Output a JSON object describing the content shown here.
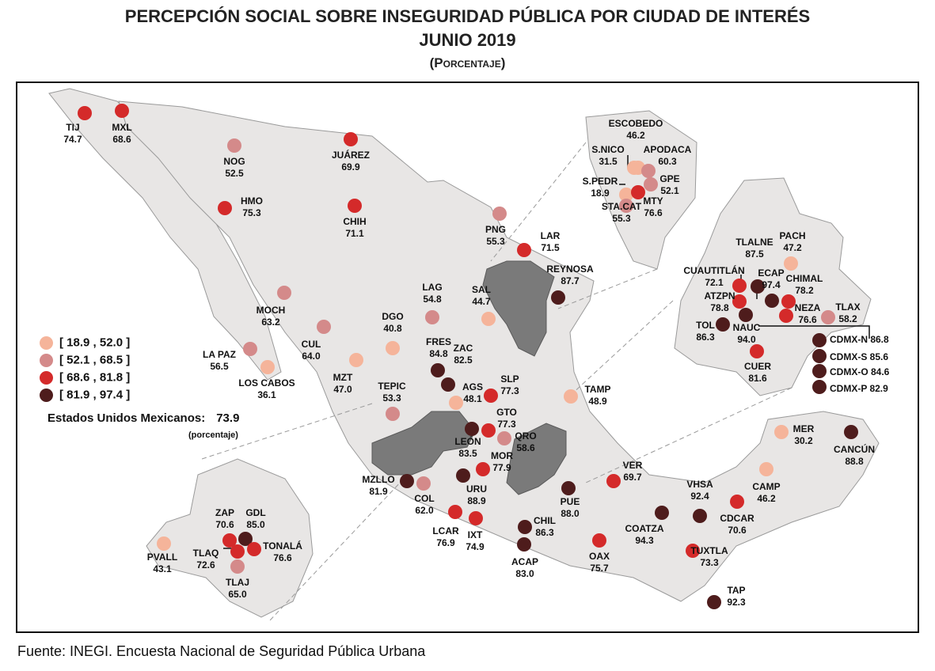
{
  "header": {
    "title": "PERCEPCIÓN SOCIAL SOBRE INSEGURIDAD PÚBLICA POR CIUDAD DE INTERÉS",
    "date": "JUNIO 2019",
    "unit": "(Porcentaje)"
  },
  "legend": [
    {
      "label": "[ 18.9 , 52.0 ]",
      "color": "#f5b49a"
    },
    {
      "label": "[ 52.1 , 68.5 ]",
      "color": "#d48a8a"
    },
    {
      "label": "[ 68.6 , 81.8 ]",
      "color": "#d42a2a"
    },
    {
      "label": "[ 81.9 , 97.4 ]",
      "color": "#4e1c1c"
    }
  ],
  "national": {
    "label": "Estados Unidos Mexicanos:",
    "value": "73.9",
    "unit": "(porcentaje)"
  },
  "source": "Fuente: INEGI. Encuesta Nacional de Seguridad Pública Urbana",
  "cities": [
    {
      "name": "TIJ",
      "value": "74.7"
    },
    {
      "name": "MXL",
      "value": "68.6"
    },
    {
      "name": "NOG",
      "value": "52.5"
    },
    {
      "name": "JUÁREZ",
      "value": "69.9"
    },
    {
      "name": "HMO",
      "value": "75.3"
    },
    {
      "name": "CHIH",
      "value": "71.1"
    },
    {
      "name": "PNG",
      "value": "55.3"
    },
    {
      "name": "LAR",
      "value": "71.5"
    },
    {
      "name": "REYNOSA",
      "value": "87.7"
    },
    {
      "name": "LAG",
      "value": "54.8"
    },
    {
      "name": "SAL",
      "value": "44.7"
    },
    {
      "name": "MOCH",
      "value": "63.2"
    },
    {
      "name": "DGO",
      "value": "40.8"
    },
    {
      "name": "LA PAZ",
      "value": "56.5"
    },
    {
      "name": "CUL",
      "value": "64.0"
    },
    {
      "name": "LOS CABOS",
      "value": "36.1"
    },
    {
      "name": "MZT",
      "value": "47.0"
    },
    {
      "name": "FRES",
      "value": "84.8"
    },
    {
      "name": "ZAC",
      "value": "82.5"
    },
    {
      "name": "SLP",
      "value": "77.3"
    },
    {
      "name": "TAMP",
      "value": "48.9"
    },
    {
      "name": "TEPIC",
      "value": "53.3"
    },
    {
      "name": "AGS",
      "value": "48.1"
    },
    {
      "name": "GTO",
      "value": "77.3"
    },
    {
      "name": "LEÓN",
      "value": "83.5"
    },
    {
      "name": "QRO",
      "value": "58.6"
    },
    {
      "name": "MOR",
      "value": "77.9"
    },
    {
      "name": "MZLLO",
      "value": "81.9"
    },
    {
      "name": "COL",
      "value": "62.0"
    },
    {
      "name": "URU",
      "value": "88.9"
    },
    {
      "name": "PUE",
      "value": "88.0"
    },
    {
      "name": "VER",
      "value": "69.7"
    },
    {
      "name": "LCAR",
      "value": "76.9"
    },
    {
      "name": "IXT",
      "value": "74.9"
    },
    {
      "name": "CHIL",
      "value": "86.3"
    },
    {
      "name": "ACAP",
      "value": "83.0"
    },
    {
      "name": "OAX",
      "value": "75.7"
    },
    {
      "name": "COATZA",
      "value": "94.3"
    },
    {
      "name": "VHSA",
      "value": "92.4"
    },
    {
      "name": "TUXTLA",
      "value": "73.3"
    },
    {
      "name": "TAP",
      "value": "92.3"
    },
    {
      "name": "CDCAR",
      "value": "70.6"
    },
    {
      "name": "CAMP",
      "value": "46.2"
    },
    {
      "name": "MER",
      "value": "30.2"
    },
    {
      "name": "CANCÚN",
      "value": "88.8"
    },
    {
      "name": "ESCOBEDO",
      "value": "46.2"
    },
    {
      "name": "S.NICO",
      "value": "31.5"
    },
    {
      "name": "APODACA",
      "value": "60.3"
    },
    {
      "name": "S.PEDR",
      "value": "18.9"
    },
    {
      "name": "GPE",
      "value": "52.1"
    },
    {
      "name": "STA.CAT",
      "value": "55.3"
    },
    {
      "name": "MTY",
      "value": "76.6"
    },
    {
      "name": "TLALNE",
      "value": "87.5"
    },
    {
      "name": "PACH",
      "value": "47.2"
    },
    {
      "name": "CUAUTITLÁN",
      "value": "72.1"
    },
    {
      "name": "ECAP",
      "value": "97.4"
    },
    {
      "name": "ATZPN",
      "value": "78.8"
    },
    {
      "name": "CHIMAL",
      "value": "78.2"
    },
    {
      "name": "NEZA",
      "value": "76.6"
    },
    {
      "name": "TLAX",
      "value": "58.2"
    },
    {
      "name": "TOL",
      "value": "86.3"
    },
    {
      "name": "NAUC",
      "value": "94.0"
    },
    {
      "name": "CUER",
      "value": "81.6"
    },
    {
      "name": "CDMX-N",
      "value": "86.8"
    },
    {
      "name": "CDMX-S",
      "value": "85.6"
    },
    {
      "name": "CDMX-O",
      "value": "84.6"
    },
    {
      "name": "CDMX-P",
      "value": "82.9"
    },
    {
      "name": "ZAP",
      "value": "70.6"
    },
    {
      "name": "GDL",
      "value": "85.0"
    },
    {
      "name": "TLAQ",
      "value": "72.6"
    },
    {
      "name": "TONALÁ",
      "value": "76.6"
    },
    {
      "name": "PVALL",
      "value": "43.1"
    },
    {
      "name": "TLAJ",
      "value": "65.0"
    }
  ]
}
